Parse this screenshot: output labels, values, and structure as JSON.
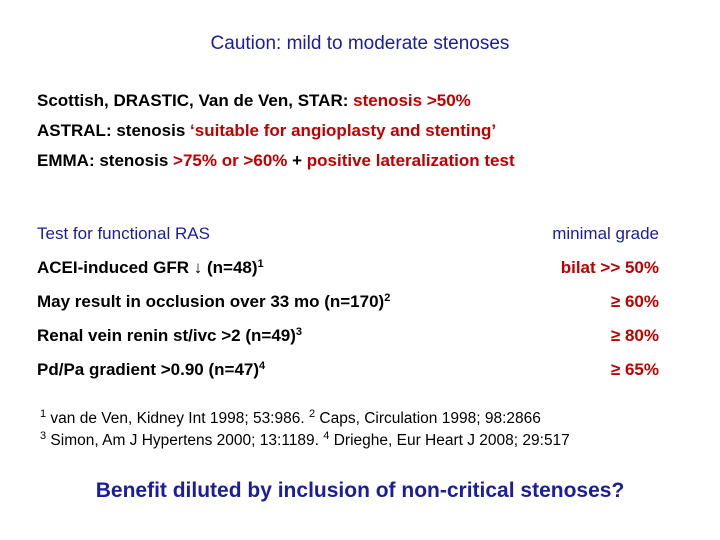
{
  "title": "Caution: mild to moderate stenoses",
  "criteria": [
    [
      {
        "text": "Scottish, DRASTIC, Van de Ven, STAR: ",
        "color": "#000000"
      },
      {
        "text": "stenosis >50%",
        "color": "#c00000"
      }
    ],
    [
      {
        "text": "ASTRAL: stenosis ",
        "color": "#000000"
      },
      {
        "text": "‘suitable for angioplasty and stenting’",
        "color": "#c00000"
      }
    ],
    [
      {
        "text": "EMMA: stenosis ",
        "color": "#000000"
      },
      {
        "text": ">75% or >60% ",
        "color": "#c00000"
      },
      {
        "text": "+",
        "color": "#000000"
      },
      {
        "text": " positive lateralization test",
        "color": "#c00000"
      }
    ]
  ],
  "table": {
    "header": [
      "Test for functional RAS",
      "minimal grade"
    ],
    "rows": [
      {
        "test": "ACEI-induced GFR ↓ (n=48)",
        "ref": "1",
        "grade": "bilat >> 50%"
      },
      {
        "test": "May result in occlusion over 33 mo (n=170)",
        "ref": "2",
        "grade": "≥ 60%"
      },
      {
        "test": "Renal vein renin st/ivc >2 (n=49)",
        "ref": "3",
        "grade": "≥ 80%"
      },
      {
        "test": "Pd/Pa gradient >0.90 (n=47)",
        "ref": "4",
        "grade": "≥ 65%"
      }
    ]
  },
  "references": [
    [
      {
        "text": "1",
        "sup": true
      },
      {
        "text": " van de Ven, Kidney Int 1998; 53:986. "
      },
      {
        "text": "2",
        "sup": true
      },
      {
        "text": " Caps, Circulation 1998; 98:2866"
      }
    ],
    [
      {
        "text": "3",
        "sup": true
      },
      {
        "text": " Simon, Am J Hypertens 2000; 13:1189. "
      },
      {
        "text": "4",
        "sup": true
      },
      {
        "text": " Drieghe, Eur Heart J 2008; 29:517"
      }
    ]
  ],
  "conclusion": "Benefit diluted by inclusion of non-critical stenoses?"
}
